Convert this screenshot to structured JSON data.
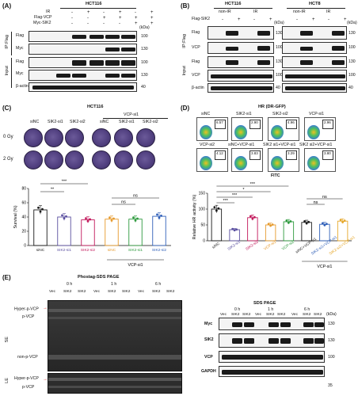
{
  "panelA": {
    "label": "(A)",
    "title": "HCT116",
    "rows": [
      "IR",
      "Flag-VCP",
      "Myc-SIK2"
    ],
    "signs": [
      [
        "-",
        "+",
        "-",
        "+",
        "-",
        "+"
      ],
      [
        "-",
        "-",
        "+",
        "+",
        "+",
        "+"
      ],
      [
        "-",
        "-",
        "-",
        "-",
        "+",
        "+"
      ]
    ],
    "kda": "(kDa)",
    "blots": [
      "Flag",
      "Myc",
      "Flag",
      "Myc",
      "β-actin"
    ],
    "markers": [
      "100",
      "130",
      "100",
      "130",
      "40"
    ],
    "side": [
      "IP:Flag",
      "Input"
    ]
  },
  "panelB": {
    "label": "(B)",
    "titles": [
      "HCT116",
      "HCT8"
    ],
    "rows": [
      "Flag-SIK2"
    ],
    "groups": [
      "non-IR",
      "IR",
      "non-IR",
      "IR"
    ],
    "signs": [
      "-",
      "+",
      "-",
      "+",
      "-",
      "+",
      "-",
      "+"
    ],
    "kda": "(kDa)",
    "blots": [
      "Flag",
      "VCP",
      "Flag",
      "VCP",
      "β-actin"
    ],
    "markers": [
      "130",
      "100",
      "130",
      "100",
      "40"
    ],
    "side": [
      "IP:Flag",
      "Input"
    ]
  },
  "panelC": {
    "label": "(C)",
    "title": "HCT116",
    "group": "VCP-si1",
    "cols": [
      "siNC",
      "SIK2-si1",
      "SIK2-si2",
      "siNC",
      "SIK2-si1",
      "SIK2-si2"
    ],
    "doses": [
      "0 Gy",
      "2 Gy"
    ],
    "sig": [
      "**",
      "***",
      "ns",
      "ns"
    ]
  },
  "panelD": {
    "label": "(D)",
    "title": "HR (DR-GFP)",
    "top": [
      "siNC",
      "SIK2-si1",
      "SIK2-si2",
      "VCP-si1"
    ],
    "top_vals": [
      "6.57",
      "2.90",
      "4.96",
      "2.96"
    ],
    "bottom": [
      "VCP-si2",
      "siNC+VCP-si1",
      "SIK2 si1+VCP-si1",
      "SIK2 si2+VCP-si1"
    ],
    "bottom_vals": [
      "4.12",
      "3.83",
      "3.29",
      "3.80"
    ],
    "xaxis": "FITC",
    "sig": [
      "***",
      "***",
      "*",
      "***",
      "ns",
      "ns"
    ]
  },
  "panelE": {
    "label": "(E)",
    "left_title": "Phostag-SDS PAGE",
    "right_title": "SDS PAGE",
    "times": [
      "0 h",
      "1 h",
      "6 h"
    ],
    "lanes": [
      "Vec",
      "SIK2",
      "SIK2",
      "Vec",
      "SIK2",
      "SIK2",
      "Vec",
      "SIK2",
      "SIK2"
    ],
    "left_labels": [
      "Hyper-p-VCP",
      "p-VCP",
      "non-p-VCP",
      "Hyper-p-VCP",
      "p-VCP"
    ],
    "side": [
      "SE",
      "LE"
    ],
    "right_blots": [
      "Myc",
      "SIK2",
      "VCP",
      "GAPDH"
    ],
    "right_markers": [
      "130",
      "130",
      "100",
      "35"
    ],
    "kda": "(kDa)"
  },
  "chart_data": [
    {
      "type": "bar",
      "categories": [
        "siNC",
        "SIK2-si1",
        "SIK2-si2",
        "siNC",
        "SIK2-si1",
        "SIK2-si2"
      ],
      "values": [
        50,
        40,
        36,
        37,
        37,
        41
      ],
      "ylabel": "Survival (%)",
      "ylim": [
        0,
        80
      ],
      "yticks": [
        0,
        20,
        40,
        60,
        80
      ],
      "colors": [
        "#1a1a1a",
        "#5a4fa0",
        "#c2185b",
        "#e69a2c",
        "#2e9a3e",
        "#2f5fb8"
      ],
      "group_label": "VCP-si1"
    },
    {
      "type": "bar",
      "categories": [
        "siNC",
        "SIK2-si1",
        "SIK2-si2",
        "VCP-si1",
        "VCP-si2",
        "siNC+VCP-si1",
        "SIK2-si1+VCP-si1",
        "SIK2-si2+VCP-si1"
      ],
      "values": [
        100,
        35,
        73,
        50,
        60,
        58,
        52,
        62
      ],
      "ylabel": "Relative HR activity (%)",
      "ylim": [
        0,
        150
      ],
      "yticks": [
        0,
        50,
        100,
        150
      ],
      "colors": [
        "#1a1a1a",
        "#5a4fa0",
        "#c2185b",
        "#e69a2c",
        "#2e9a3e",
        "#1a1a1a",
        "#2f5fb8",
        "#e6a82c"
      ],
      "group_label": "VCP-si1"
    }
  ]
}
